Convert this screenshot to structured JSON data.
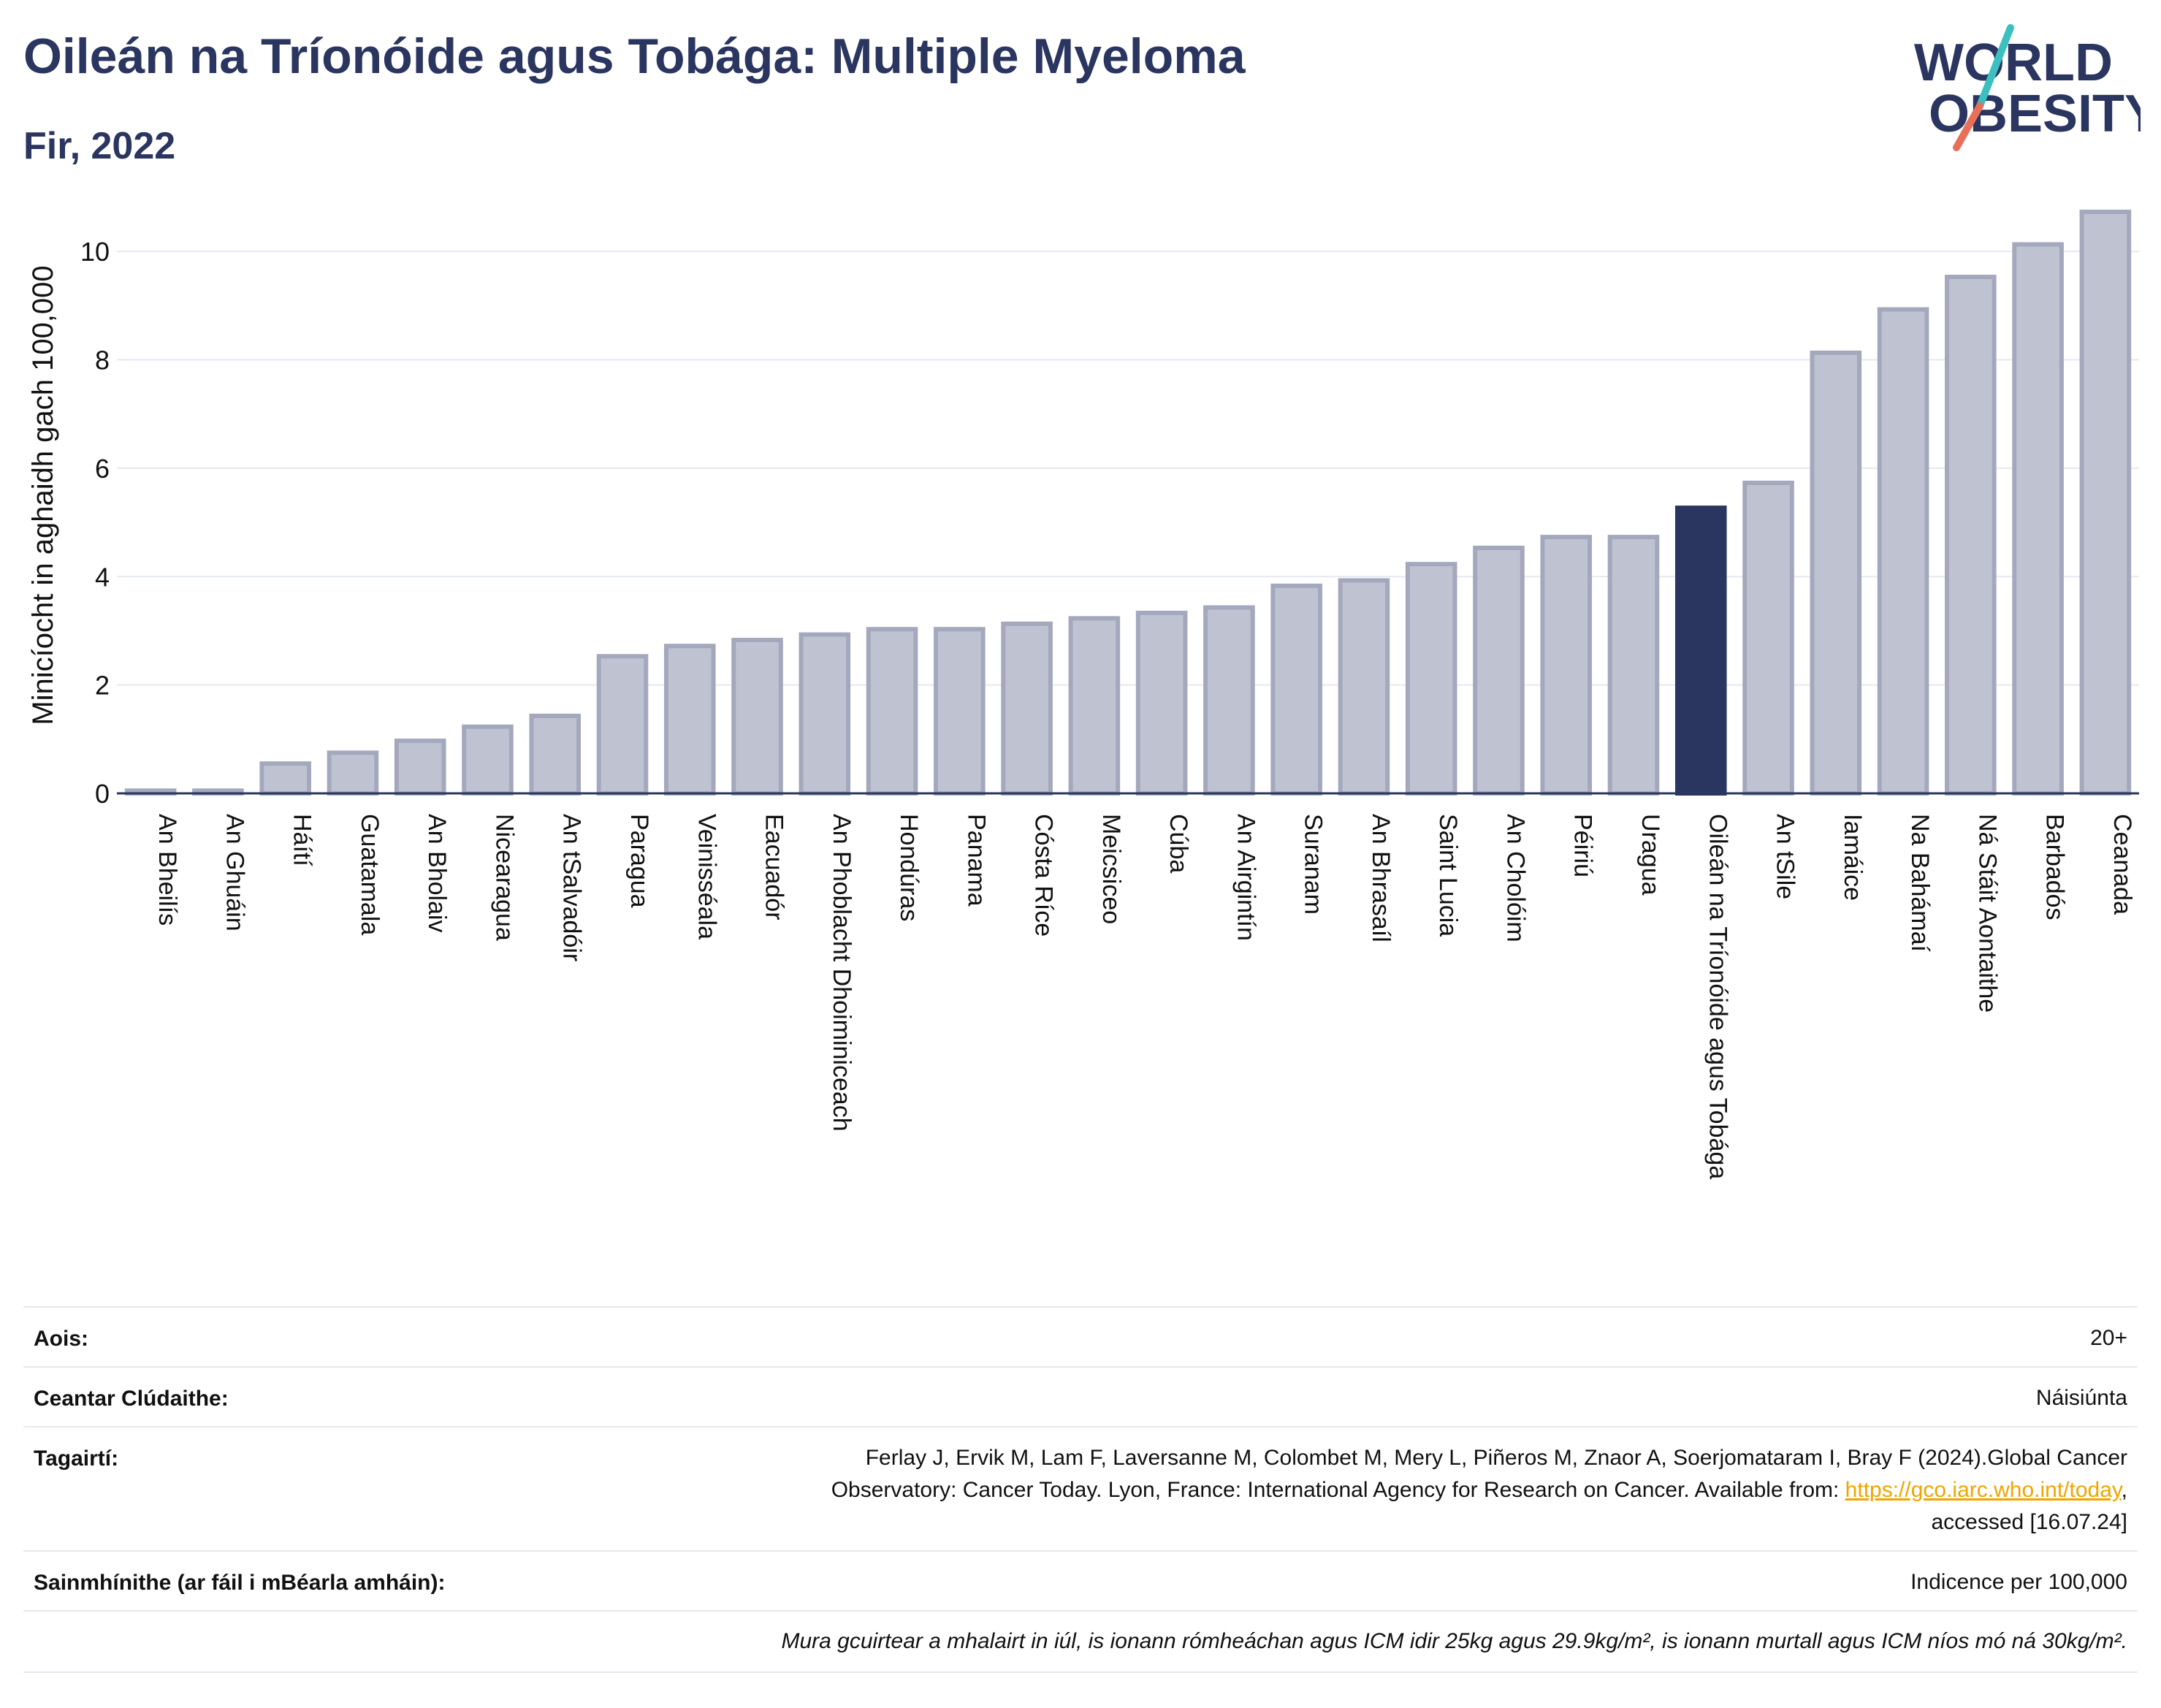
{
  "header": {
    "title": "Oileán na Tríonóide agus Tobága: Multiple Myeloma",
    "subtitle": "Fir, 2022",
    "logo_line1": "WORLD",
    "logo_line2": "OBESITY"
  },
  "colors": {
    "bar": "#bfc3d1",
    "bar_border": "#a3a8bd",
    "highlight": "#2a3560",
    "grid": "#e6e8f0",
    "logo_teal": "#3bbfbf",
    "logo_red": "#e8705a"
  },
  "chart_data": {
    "type": "bar",
    "ylabel": "Minicíocht in aghaidh gach 100,000",
    "ylim": [
      0,
      11
    ],
    "yticks": [
      0,
      2,
      4,
      6,
      8,
      10
    ],
    "grid": true,
    "highlight_category": "Oileán na Tríonóide agus Tobága",
    "categories": [
      "An Bheilís",
      "An Ghuáin",
      "Háítí",
      "Guatamala",
      "An Bholaiv",
      "Nicearagua",
      "An tSalvadóir",
      "Paragua",
      "Veinisséala",
      "Eacuadór",
      "An Phoblacht Dhoiminiceach",
      "Hondúras",
      "Panama",
      "Cósta Ríce",
      "Meicsiceo",
      "Cúba",
      "An Airgintín",
      "Suranam",
      "An Bhrasaíl",
      "Saint Lucia",
      "An Cholóim",
      "Péiriú",
      "Uragua",
      "Oileán na Tríonóide agus Tobága",
      "An tSile",
      "Iamáice",
      "Na Bahámaí",
      "Ná Stáit Aontaithe",
      "Barbadós",
      "Ceanada"
    ],
    "values": [
      0.05,
      0.05,
      0.55,
      0.75,
      0.97,
      1.23,
      1.43,
      2.53,
      2.72,
      2.83,
      2.93,
      3.03,
      3.03,
      3.13,
      3.23,
      3.33,
      3.43,
      3.83,
      3.93,
      4.23,
      4.53,
      4.73,
      4.73,
      5.27,
      5.73,
      8.13,
      8.93,
      9.53,
      10.13,
      10.73
    ]
  },
  "meta": {
    "age_label": "Aois:",
    "age_value": "20+",
    "area_label": "Ceantar Clúdaithe:",
    "area_value": "Náisiúnta",
    "ref_label": "Tagairtí:",
    "ref_line1": "Ferlay J, Ervik M, Lam F, Laversanne M, Colombet M, Mery L, Piñeros M, Znaor A, Soerjomataram I, Bray F (2024).Global Cancer",
    "ref_line2": "Observatory: Cancer Today. Lyon, France: International Agency for Research on Cancer. Available from: ",
    "ref_link": "https://gco.iarc.who.int/today",
    "ref_line2_end": ",",
    "ref_line3": "accessed [16.07.24]",
    "def_label": "Sainmhínithe (ar fáil i mBéarla amháin):",
    "def_value": "Indicence per 100,000",
    "footnote": "Mura gcuirtear a mhalairt in iúl, is ionann rómheáchan agus ICM idir 25kg agus 29.9kg/m², is ionann murtall agus ICM níos mó ná 30kg/m²."
  }
}
